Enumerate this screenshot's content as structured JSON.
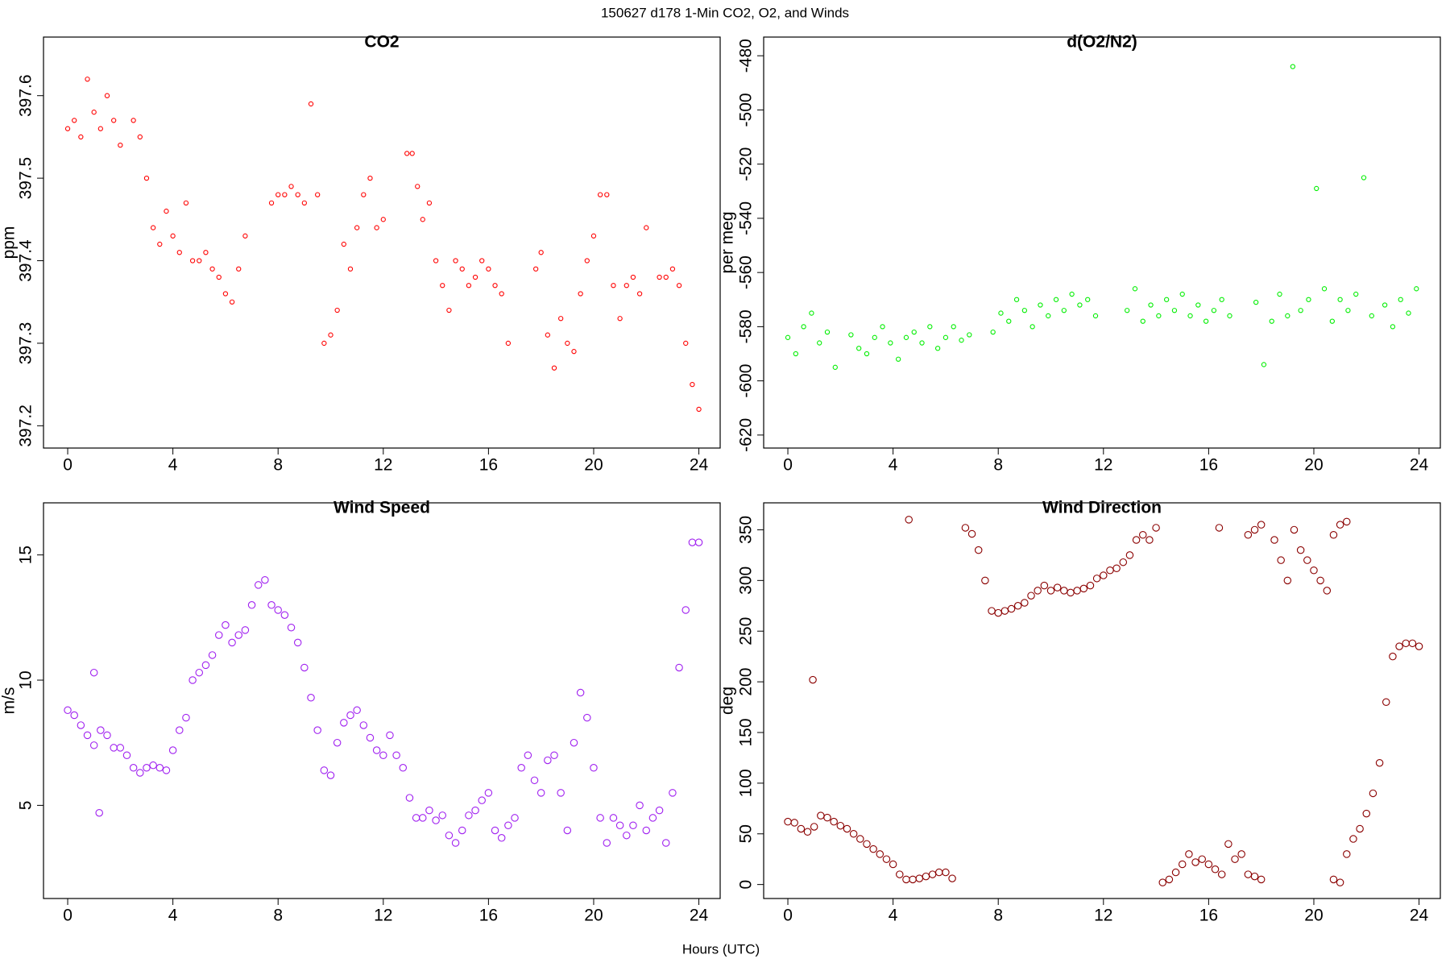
{
  "title": "150627   d178   1-Min CO2, O2, and Winds",
  "x_label": "Hours (UTC)",
  "chart_data": [
    {
      "type": "scatter",
      "title": "CO2",
      "y_label": "ppm",
      "color": "#ff0000",
      "xlim": [
        -0.92,
        24.81
      ],
      "ylim": [
        397.173,
        397.671
      ],
      "xticks": [
        0,
        4,
        8,
        12,
        16,
        20,
        24
      ],
      "yticks": [
        397.2,
        397.3,
        397.4,
        397.5,
        397.6
      ],
      "x": [
        0,
        0.25,
        0.5,
        0.75,
        1,
        1.25,
        1.5,
        1.75,
        2,
        2.5,
        2.75,
        3,
        3.25,
        3.5,
        3.75,
        4,
        4.25,
        4.5,
        4.75,
        5,
        5.25,
        5.5,
        5.75,
        6,
        6.25,
        6.5,
        6.75,
        7.75,
        8,
        8.25,
        8.5,
        8.75,
        9,
        9.25,
        9.5,
        9.75,
        10,
        10.25,
        10.5,
        10.75,
        11,
        11.25,
        11.5,
        11.75,
        12,
        12.9,
        13.1,
        13.3,
        13.5,
        13.75,
        14,
        14.25,
        14.5,
        14.75,
        15,
        15.25,
        15.5,
        15.75,
        16,
        16.25,
        16.5,
        16.75,
        17.8,
        18,
        18.25,
        18.5,
        18.75,
        19,
        19.25,
        19.5,
        19.75,
        20,
        20.25,
        20.5,
        20.75,
        21,
        21.25,
        21.5,
        21.75,
        22,
        22.5,
        22.75,
        23,
        23.25,
        23.5,
        23.75,
        24
      ],
      "values": [
        397.56,
        397.57,
        397.55,
        397.62,
        397.58,
        397.56,
        397.6,
        397.57,
        397.54,
        397.57,
        397.55,
        397.5,
        397.44,
        397.42,
        397.46,
        397.43,
        397.41,
        397.47,
        397.4,
        397.4,
        397.41,
        397.39,
        397.38,
        397.36,
        397.35,
        397.39,
        397.43,
        397.47,
        397.48,
        397.48,
        397.49,
        397.48,
        397.47,
        397.59,
        397.48,
        397.3,
        397.31,
        397.34,
        397.42,
        397.39,
        397.44,
        397.48,
        397.5,
        397.44,
        397.45,
        397.53,
        397.53,
        397.49,
        397.45,
        397.47,
        397.4,
        397.37,
        397.34,
        397.4,
        397.39,
        397.37,
        397.38,
        397.4,
        397.39,
        397.37,
        397.36,
        397.3,
        397.39,
        397.41,
        397.31,
        397.27,
        397.33,
        397.3,
        397.29,
        397.36,
        397.4,
        397.43,
        397.48,
        397.48,
        397.37,
        397.33,
        397.37,
        397.38,
        397.36,
        397.44,
        397.38,
        397.38,
        397.39,
        397.37,
        397.3,
        397.25,
        397.22
      ]
    },
    {
      "type": "scatter",
      "title": "d(O2/N2)",
      "y_label": "per meg",
      "color": "#00ee00",
      "xlim": [
        -0.92,
        24.81
      ],
      "ylim": [
        -624.8,
        -473.1
      ],
      "xticks": [
        0,
        4,
        8,
        12,
        16,
        20,
        24
      ],
      "yticks": [
        -620,
        -600,
        -580,
        -560,
        -540,
        -520,
        -500,
        -480
      ],
      "x": [
        0,
        0.3,
        0.6,
        0.9,
        1.2,
        1.5,
        1.8,
        2.4,
        2.7,
        3,
        3.3,
        3.6,
        3.9,
        4.2,
        4.5,
        4.8,
        5.1,
        5.4,
        5.7,
        6,
        6.3,
        6.6,
        6.9,
        7.8,
        8.1,
        8.4,
        8.7,
        9,
        9.3,
        9.6,
        9.9,
        10.2,
        10.5,
        10.8,
        11.1,
        11.4,
        11.7,
        12.9,
        13.2,
        13.5,
        13.8,
        14.1,
        14.4,
        14.7,
        15,
        15.3,
        15.6,
        15.9,
        16.2,
        16.5,
        16.8,
        17.8,
        18.1,
        18.4,
        18.7,
        19,
        19.2,
        19.5,
        19.8,
        20.1,
        20.4,
        20.7,
        21,
        21.3,
        21.6,
        21.9,
        22.2,
        22.7,
        23,
        23.3,
        23.6,
        23.9
      ],
      "values": [
        -584,
        -590,
        -580,
        -575,
        -586,
        -582,
        -595,
        -583,
        -588,
        -590,
        -584,
        -580,
        -586,
        -592,
        -584,
        -582,
        -586,
        -580,
        -588,
        -584,
        -580,
        -585,
        -583,
        -582,
        -575,
        -578,
        -570,
        -574,
        -580,
        -572,
        -576,
        -570,
        -574,
        -568,
        -572,
        -570,
        -576,
        -574,
        -566,
        -578,
        -572,
        -576,
        -570,
        -574,
        -568,
        -576,
        -572,
        -578,
        -574,
        -570,
        -576,
        -571,
        -594,
        -578,
        -568,
        -576,
        -484,
        -574,
        -570,
        -529,
        -566,
        -578,
        -570,
        -574,
        -568,
        -525,
        -576,
        -572,
        -580,
        -570,
        -575,
        -566
      ]
    },
    {
      "type": "scatter",
      "title": "Wind Speed",
      "y_label": "m/s",
      "color": "#a020f0",
      "xlim": [
        -0.92,
        24.81
      ],
      "ylim": [
        1.28,
        17.08
      ],
      "xticks": [
        0,
        4,
        8,
        12,
        16,
        20,
        24
      ],
      "yticks": [
        5,
        10,
        15
      ],
      "x": [
        0,
        0.25,
        0.5,
        0.75,
        1,
        1,
        1.2,
        1.25,
        1.5,
        1.75,
        2,
        2.25,
        2.5,
        2.75,
        3,
        3.25,
        3.5,
        3.75,
        4,
        4.25,
        4.5,
        4.75,
        5,
        5.25,
        5.5,
        5.75,
        6,
        6.25,
        6.5,
        6.75,
        7,
        7.25,
        7.5,
        7.75,
        8,
        8.25,
        8.5,
        8.75,
        9,
        9.25,
        9.5,
        9.75,
        10,
        10.25,
        10.5,
        10.75,
        11,
        11.25,
        11.5,
        11.75,
        12,
        12.25,
        12.5,
        12.75,
        13,
        13.25,
        13.5,
        13.75,
        14,
        14.25,
        14.5,
        14.75,
        15,
        15.25,
        15.5,
        15.75,
        16,
        16.25,
        16.5,
        16.75,
        17,
        17.25,
        17.5,
        17.75,
        18,
        18.25,
        18.5,
        18.75,
        19,
        19.25,
        19.5,
        19.75,
        20,
        20.25,
        20.5,
        20.75,
        21,
        21.25,
        21.5,
        21.75,
        22,
        22.25,
        22.5,
        22.75,
        23,
        23.25,
        23.5,
        23.75,
        24
      ],
      "values": [
        8.8,
        8.6,
        8.2,
        7.8,
        7.4,
        10.3,
        4.7,
        8,
        7.8,
        7.3,
        7.3,
        7,
        6.5,
        6.3,
        6.5,
        6.6,
        6.5,
        6.4,
        7.2,
        8,
        8.5,
        10,
        10.3,
        10.6,
        11,
        11.8,
        12.2,
        11.5,
        11.8,
        12,
        13,
        13.8,
        14,
        13,
        12.8,
        12.6,
        12.1,
        11.5,
        10.5,
        9.3,
        8,
        6.4,
        6.2,
        7.5,
        8.3,
        8.6,
        8.8,
        8.2,
        7.7,
        7.2,
        7,
        7.8,
        7,
        6.5,
        5.3,
        4.5,
        4.5,
        4.8,
        4.4,
        4.6,
        3.8,
        3.5,
        4,
        4.6,
        4.8,
        5.2,
        5.5,
        4,
        3.7,
        4.2,
        4.5,
        6.5,
        7,
        6,
        5.5,
        6.8,
        7,
        5.5,
        4,
        7.5,
        9.5,
        8.5,
        6.5,
        4.5,
        3.5,
        4.5,
        4.2,
        3.8,
        4.2,
        5,
        4,
        4.5,
        4.8,
        3.5,
        5.5,
        10.5,
        12.8,
        15.5,
        15.5
      ]
    },
    {
      "type": "scatter",
      "title": "Wind Direction",
      "y_label": "deg",
      "color": "#8b0000",
      "xlim": [
        -0.92,
        24.81
      ],
      "ylim": [
        -13.8,
        376.6
      ],
      "xticks": [
        0,
        4,
        8,
        12,
        16,
        20,
        24
      ],
      "yticks": [
        0,
        50,
        100,
        150,
        200,
        250,
        300,
        350
      ],
      "x": [
        0,
        0.25,
        0.5,
        0.75,
        0.95,
        1,
        1.25,
        1.5,
        1.75,
        2,
        2.25,
        2.5,
        2.75,
        3,
        3.25,
        3.5,
        3.75,
        4,
        4.25,
        4.5,
        4.6,
        4.75,
        5,
        5.25,
        5.5,
        5.75,
        6,
        6.25,
        6.75,
        7,
        7.25,
        7.5,
        7.75,
        8,
        8.25,
        8.5,
        8.75,
        9,
        9.25,
        9.5,
        9.75,
        10,
        10.25,
        10.5,
        10.75,
        11,
        11.25,
        11.5,
        11.75,
        12,
        12.25,
        12.5,
        12.75,
        13,
        13.25,
        13.5,
        13.75,
        14,
        14.25,
        14.5,
        14.75,
        15,
        15.25,
        15.5,
        15.75,
        16,
        16.25,
        16.4,
        16.5,
        16.75,
        17,
        17.25,
        17.5,
        17.5,
        17.75,
        17.75,
        18,
        18,
        18.5,
        18.75,
        19,
        19.25,
        19.5,
        19.75,
        20,
        20.25,
        20.5,
        20.75,
        20.75,
        21,
        21,
        21.25,
        21.25,
        21.5,
        21.75,
        22,
        22.25,
        22.5,
        22.75,
        23,
        23.25,
        23.5,
        23.75,
        24
      ],
      "values": [
        62,
        61,
        55,
        52,
        202,
        57,
        68,
        66,
        62,
        58,
        55,
        50,
        45,
        40,
        35,
        30,
        25,
        20,
        10,
        5,
        360,
        5,
        6,
        8,
        10,
        12,
        12,
        6,
        352,
        346,
        330,
        300,
        270,
        268,
        270,
        272,
        275,
        278,
        285,
        290,
        295,
        290,
        293,
        290,
        288,
        290,
        292,
        295,
        302,
        305,
        310,
        312,
        318,
        325,
        340,
        345,
        340,
        352,
        2,
        5,
        12,
        20,
        30,
        22,
        25,
        20,
        15,
        352,
        10,
        40,
        25,
        30,
        10,
        345,
        8,
        350,
        5,
        355,
        340,
        320,
        300,
        350,
        330,
        320,
        310,
        300,
        290,
        345,
        5,
        355,
        2,
        358,
        30,
        45,
        55,
        70,
        90,
        120,
        180,
        225,
        235,
        238,
        238,
        235
      ]
    }
  ]
}
